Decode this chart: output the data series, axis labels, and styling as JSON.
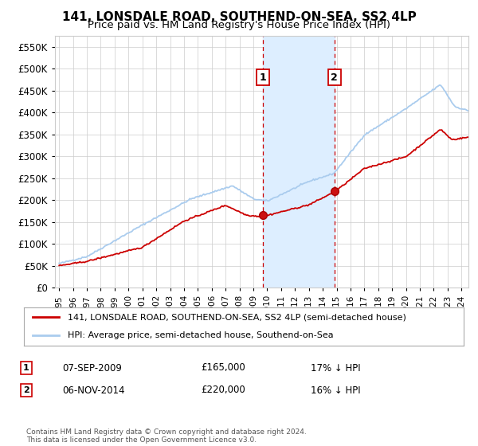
{
  "title": "141, LONSDALE ROAD, SOUTHEND-ON-SEA, SS2 4LP",
  "subtitle": "Price paid vs. HM Land Registry's House Price Index (HPI)",
  "ylim": [
    0,
    575000
  ],
  "yticks": [
    0,
    50000,
    100000,
    150000,
    200000,
    250000,
    300000,
    350000,
    400000,
    450000,
    500000,
    550000
  ],
  "legend_entries": [
    "141, LONSDALE ROAD, SOUTHEND-ON-SEA, SS2 4LP (semi-detached house)",
    "HPI: Average price, semi-detached house, Southend-on-Sea"
  ],
  "legend_colors": [
    "#cc0000",
    "#aaccee"
  ],
  "transaction1": {
    "date": "07-SEP-2009",
    "price": 165000,
    "pct": "17%",
    "dir": "↓",
    "label": "1"
  },
  "transaction2": {
    "date": "06-NOV-2014",
    "price": 220000,
    "pct": "16%",
    "dir": "↓",
    "label": "2"
  },
  "footnote": "Contains HM Land Registry data © Crown copyright and database right 2024.\nThis data is licensed under the Open Government Licence v3.0.",
  "shade_color": "#ddeeff",
  "vline_color": "#cc0000",
  "grid_color": "#cccccc",
  "background_color": "#ffffff",
  "title_fontsize": 11,
  "subtitle_fontsize": 9.5
}
